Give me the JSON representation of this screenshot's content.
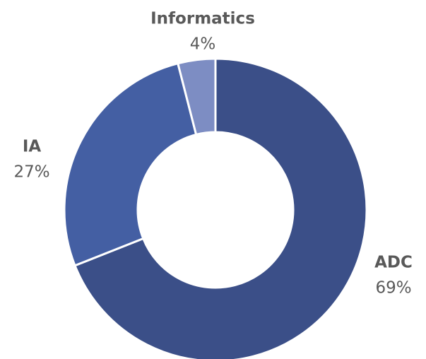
{
  "chart_data": {
    "type": "donut",
    "categories": [
      "ADC",
      "IA",
      "Informatics"
    ],
    "values": [
      69,
      27,
      4
    ],
    "value_labels": [
      "69%",
      "27%",
      "4%"
    ],
    "colors": [
      "#3b4f88",
      "#445fa3",
      "#7d8dc3"
    ]
  }
}
